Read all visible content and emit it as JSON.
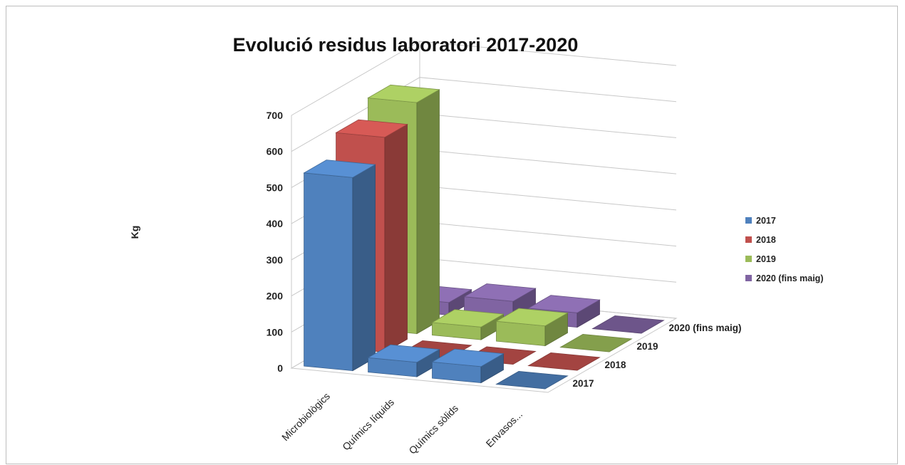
{
  "chart_data": {
    "type": "bar",
    "subtype": "3d-column",
    "title": "Evolució residus laboratori 2017-2020",
    "ylabel": "Kg",
    "xlabel": "",
    "ylim": [
      0,
      700
    ],
    "yticks": [
      "0",
      "100",
      "200",
      "300",
      "400",
      "500",
      "600",
      "700"
    ],
    "categories": [
      "Microbiològics",
      "Químics líquids",
      "Químics sòlids",
      "Envasos..."
    ],
    "series": [
      {
        "name": "2017",
        "color": "#4F81BD",
        "values": [
          535,
          40,
          45,
          0
        ]
      },
      {
        "name": "2018",
        "color": "#C0504D",
        "values": [
          595,
          0,
          0,
          0
        ]
      },
      {
        "name": "2019",
        "color": "#9BBB59",
        "values": [
          640,
          35,
          55,
          0
        ]
      },
      {
        "name": "2020 (fins maig)",
        "color": "#8064A2",
        "values": [
          35,
          55,
          40,
          0
        ]
      }
    ],
    "depth_labels": [
      "2020 (fins maig)",
      "2019",
      "2018",
      "2017"
    ],
    "legend_position": "right",
    "grid": true
  }
}
